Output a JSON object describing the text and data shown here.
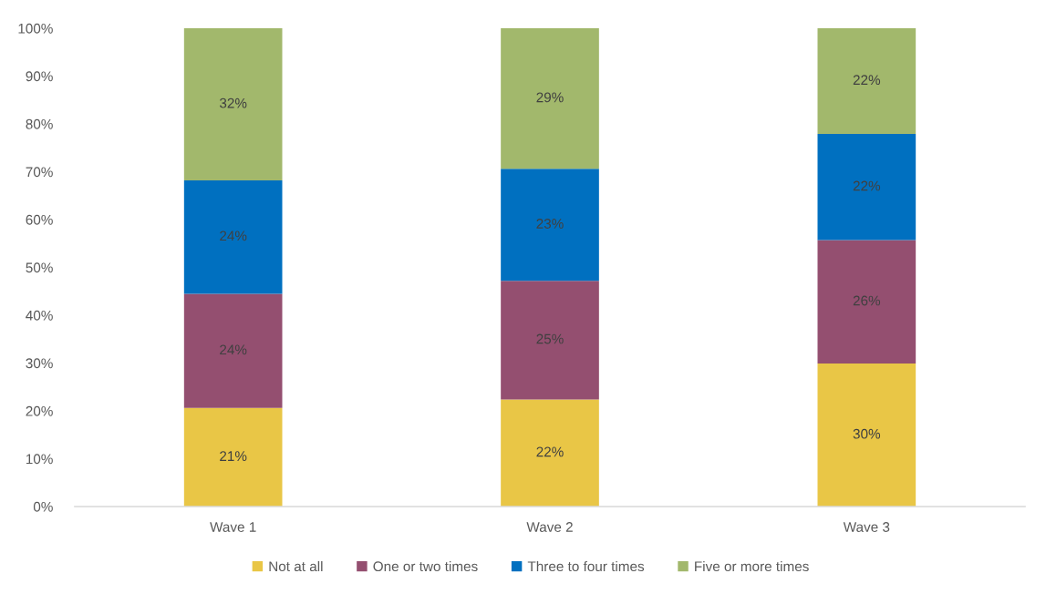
{
  "chart_data": {
    "type": "bar",
    "stacked": true,
    "categories": [
      "Wave 1",
      "Wave 2",
      "Wave 3"
    ],
    "series": [
      {
        "name": "Not at all",
        "color": "#e9c646",
        "values": [
          20.6,
          22.4,
          29.9
        ],
        "value_labels": [
          "21%",
          "22%",
          "30%"
        ]
      },
      {
        "name": "One or two times",
        "color": "#944f70",
        "values": [
          23.9,
          24.8,
          25.8
        ],
        "value_labels": [
          "24%",
          "25%",
          "26%"
        ]
      },
      {
        "name": "Three to four times",
        "color": "#0070c0",
        "values": [
          23.7,
          23.4,
          22.2
        ],
        "value_labels": [
          "24%",
          "23%",
          "22%"
        ]
      },
      {
        "name": "Five or more times",
        "color": "#a2b86c",
        "values": [
          31.8,
          29.4,
          22.1
        ],
        "value_labels": [
          "32%",
          "29%",
          "22%"
        ]
      }
    ],
    "ylim": [
      0,
      100
    ],
    "yticks": [
      {
        "value": 0,
        "label": "0%"
      },
      {
        "value": 10,
        "label": "10%"
      },
      {
        "value": 20,
        "label": "20%"
      },
      {
        "value": 30,
        "label": "30%"
      },
      {
        "value": 40,
        "label": "40%"
      },
      {
        "value": 50,
        "label": "50%"
      },
      {
        "value": 60,
        "label": "60%"
      },
      {
        "value": 70,
        "label": "70%"
      },
      {
        "value": 80,
        "label": "80%"
      },
      {
        "value": 90,
        "label": "90%"
      },
      {
        "value": 100,
        "label": "100%"
      }
    ],
    "grid": false,
    "legend": "bottom"
  }
}
